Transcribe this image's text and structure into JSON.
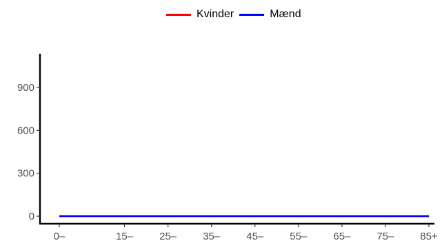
{
  "chart_data": {
    "type": "line",
    "title": "",
    "xlabel": "",
    "ylabel": "",
    "x_categories": [
      "0–",
      "15–",
      "25–",
      "35–",
      "45–",
      "55–",
      "65–",
      "75–",
      "85+"
    ],
    "x_positions": [
      0,
      15,
      25,
      35,
      45,
      55,
      65,
      75,
      85
    ],
    "ylim": [
      -60,
      1100
    ],
    "y_ticks": [
      0,
      300,
      600,
      900
    ],
    "y_tick_labels": [
      "0",
      "300",
      "600",
      "900"
    ],
    "grid": false,
    "legend_position": "top",
    "series": [
      {
        "name": "Kvinder",
        "color": "#ff0000",
        "x": [
          0,
          85
        ],
        "values": [
          0,
          0
        ]
      },
      {
        "name": "Mænd",
        "color": "#0000ff",
        "x": [
          0,
          85
        ],
        "values": [
          0,
          0
        ]
      }
    ]
  }
}
